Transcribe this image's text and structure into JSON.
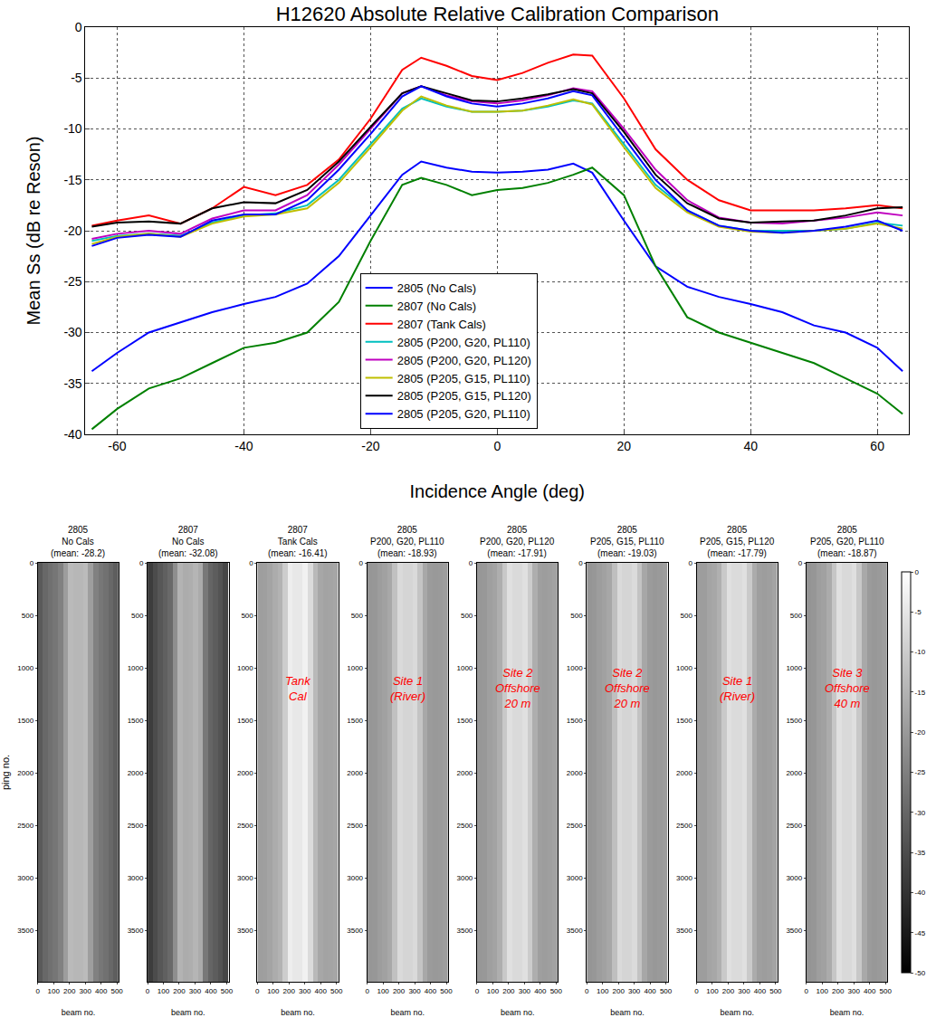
{
  "chart_data": [
    {
      "type": "line",
      "title": "H12620 Absolute Relative Calibration Comparison",
      "xlabel": "Incidence Angle (deg)",
      "ylabel": "Mean Ss (dB re Reson)",
      "xlim": [
        -65,
        65
      ],
      "ylim": [
        -40,
        0
      ],
      "xticks": [
        -60,
        -40,
        -20,
        0,
        20,
        40,
        60
      ],
      "yticks": [
        -40,
        -35,
        -30,
        -25,
        -20,
        -15,
        -10,
        -5,
        0
      ],
      "grid": true,
      "legend": "lower center",
      "x": [
        -64,
        -60,
        -55,
        -50,
        -45,
        -40,
        -35,
        -30,
        -25,
        -20,
        -15,
        -12,
        -8,
        -4,
        0,
        4,
        8,
        12,
        15,
        20,
        25,
        30,
        35,
        40,
        45,
        50,
        55,
        60,
        64
      ],
      "series": [
        {
          "name": "2805 (No Cals)",
          "color": "#0000ff",
          "values": [
            -33.8,
            -32,
            -30,
            -29,
            -28,
            -27.2,
            -26.5,
            -25.2,
            -22.5,
            -18.5,
            -14.5,
            -13.2,
            -13.8,
            -14.2,
            -14.3,
            -14.2,
            -14,
            -13.4,
            -14.3,
            -19,
            -23.5,
            -25.5,
            -26.5,
            -27.2,
            -28,
            -29.3,
            -30,
            -31.5,
            -33.8
          ]
        },
        {
          "name": "2807 (No Cals)",
          "color": "#008000",
          "values": [
            -39.5,
            -37.5,
            -35.5,
            -34.5,
            -33,
            -31.5,
            -31,
            -30,
            -27,
            -21,
            -15.5,
            -14.8,
            -15.5,
            -16.5,
            -16,
            -15.8,
            -15.3,
            -14.5,
            -13.8,
            -16.5,
            -23.5,
            -28.5,
            -30,
            -31,
            -32,
            -33,
            -34.5,
            -36,
            -38
          ]
        },
        {
          "name": "2807 (Tank Cals)",
          "color": "#ff0000",
          "values": [
            -19.5,
            -19,
            -18.5,
            -19.3,
            -17.8,
            -15.7,
            -16.5,
            -15.5,
            -13,
            -9,
            -4.2,
            -3,
            -3.8,
            -4.8,
            -5.2,
            -4.5,
            -3.5,
            -2.7,
            -2.8,
            -7,
            -12,
            -15,
            -17,
            -18,
            -18,
            -18,
            -17.8,
            -17.5,
            -17.8
          ]
        },
        {
          "name": "2805 (P200, G20, PL110)",
          "color": "#00bfbf",
          "values": [
            -21,
            -20.5,
            -20.3,
            -20.5,
            -19.2,
            -18.5,
            -18.3,
            -17.5,
            -15,
            -11.5,
            -8,
            -7,
            -7.8,
            -8.3,
            -8.3,
            -8.2,
            -7.8,
            -7.2,
            -7.5,
            -11.5,
            -15.5,
            -18,
            -19.5,
            -20,
            -20,
            -20,
            -19.8,
            -19.2,
            -19.5
          ]
        },
        {
          "name": "2805 (P200, G20, PL120)",
          "color": "#bf00bf",
          "values": [
            -20.8,
            -20.3,
            -20,
            -20.3,
            -18.8,
            -18,
            -18,
            -16.5,
            -13.5,
            -10,
            -6.5,
            -5.8,
            -6.7,
            -7.3,
            -7.5,
            -7.2,
            -6.7,
            -6,
            -6.3,
            -10,
            -14,
            -17,
            -18.7,
            -19.2,
            -19.3,
            -19,
            -18.7,
            -18.2,
            -18.5
          ]
        },
        {
          "name": "2805 (P205, G15, PL110)",
          "color": "#bfbf00",
          "values": [
            -21.3,
            -20.6,
            -20.3,
            -20.6,
            -19.3,
            -18.6,
            -18.4,
            -17.8,
            -15.3,
            -11.8,
            -8.2,
            -6.8,
            -7.7,
            -8.3,
            -8.3,
            -8.2,
            -7.7,
            -7.1,
            -7.6,
            -11.8,
            -15.8,
            -18.2,
            -19.6,
            -20.1,
            -20.2,
            -20,
            -19.8,
            -19.3,
            -19.8
          ]
        },
        {
          "name": "2805 (P205, G15, PL120)",
          "color": "#000000",
          "values": [
            -19.6,
            -19.2,
            -19.1,
            -19.3,
            -17.8,
            -17.2,
            -17.3,
            -16,
            -13.2,
            -9.8,
            -6.5,
            -5.8,
            -6.5,
            -7.2,
            -7.3,
            -7,
            -6.6,
            -6.1,
            -6.5,
            -10.3,
            -14.5,
            -17.3,
            -18.8,
            -19.2,
            -19.1,
            -19,
            -18.5,
            -17.8,
            -17.7
          ]
        },
        {
          "name": "2805 (P205, G20, PL110)",
          "color": "#0000ff",
          "values": [
            -21.5,
            -20.7,
            -20.4,
            -20.6,
            -19,
            -18.4,
            -18.4,
            -17,
            -14,
            -10.5,
            -6.8,
            -5.8,
            -6.8,
            -7.5,
            -7.8,
            -7.5,
            -7,
            -6.3,
            -6.7,
            -10.8,
            -15,
            -18,
            -19.5,
            -20,
            -20.2,
            -20,
            -19.6,
            -19,
            -20
          ]
        }
      ]
    },
    {
      "type": "heatmap",
      "title_lines": [
        "2805",
        "No Cals",
        "(mean: -28.2)"
      ],
      "xlabel": "beam no.",
      "ylabel": "ping no.",
      "xlim": [
        0,
        512
      ],
      "ylim": [
        3990,
        0
      ],
      "xticks": [
        0,
        100,
        200,
        300,
        400,
        500
      ],
      "yticks": [
        0,
        500,
        1000,
        1500,
        2000,
        2500,
        3000,
        3500
      ],
      "x_edges": [
        0,
        32,
        64,
        96,
        128,
        160,
        192,
        224,
        256,
        288,
        320,
        352,
        384,
        416,
        448,
        480,
        512
      ],
      "y_edges": [
        0,
        3990
      ],
      "z": [
        [
          -32.4,
          -29.6,
          -28,
          -26.8,
          -24.7,
          -19.3,
          -13.6,
          -14.1,
          -14.2,
          -13.4,
          -19,
          -24.7,
          -26.6,
          -27.8,
          -29.6,
          -31.5
        ]
      ]
    },
    {
      "type": "heatmap",
      "title_lines": [
        "2807",
        "No Cals",
        "(mean: -32.08)"
      ],
      "xlabel": "beam no.",
      "xlim": [
        0,
        512
      ],
      "ylim": [
        3990,
        0
      ],
      "xticks": [
        0,
        100,
        200,
        300,
        400,
        500
      ],
      "yticks": [
        0,
        500,
        1000,
        1500,
        2000,
        2500,
        3000,
        3500
      ],
      "x_edges": [
        0,
        32,
        64,
        96,
        128,
        160,
        192,
        224,
        256,
        288,
        320,
        352,
        384,
        416,
        448,
        480,
        512
      ],
      "y_edges": [
        0,
        3990
      ],
      "z": [
        [
          -38,
          -35.1,
          -33,
          -31.2,
          -29.4,
          -22.2,
          -15,
          -16.2,
          -15.8,
          -14.5,
          -16.5,
          -26.5,
          -30.2,
          -31.8,
          -33.6,
          -36
        ]
      ]
    },
    {
      "type": "heatmap",
      "title_lines": [
        "2807",
        "Tank Cals",
        "(mean: -16.41)"
      ],
      "annotation_lines": [
        "Tank",
        "Cal"
      ],
      "xlabel": "beam no.",
      "xlim": [
        0,
        512
      ],
      "ylim": [
        3990,
        0
      ],
      "xticks": [
        0,
        100,
        200,
        300,
        400,
        500
      ],
      "yticks": [
        0,
        500,
        1000,
        1500,
        2000,
        2500,
        3000,
        3500
      ],
      "x_edges": [
        0,
        32,
        64,
        96,
        128,
        160,
        192,
        224,
        256,
        288,
        320,
        352,
        384,
        416,
        448,
        480,
        512
      ],
      "y_edges": [
        0,
        3990
      ],
      "z": [
        [
          -19.1,
          -18.8,
          -17.8,
          -16.2,
          -15,
          -9.8,
          -3.4,
          -4.6,
          -4.5,
          -2.7,
          -7,
          -13.8,
          -17.2,
          -18,
          -17.9,
          -17.5
        ]
      ]
    },
    {
      "type": "heatmap",
      "title_lines": [
        "2805",
        "P200, G20, PL110",
        "(mean: -18.93)"
      ],
      "annotation_lines": [
        "Site 1",
        "(River)"
      ],
      "xlabel": "beam no.",
      "xlim": [
        0,
        512
      ],
      "ylim": [
        3990,
        0
      ],
      "xticks": [
        0,
        100,
        200,
        300,
        400,
        500
      ],
      "yticks": [
        0,
        500,
        1000,
        1500,
        2000,
        2500,
        3000,
        3500
      ],
      "x_edges": [
        0,
        32,
        64,
        96,
        128,
        160,
        192,
        224,
        256,
        288,
        320,
        352,
        384,
        416,
        448,
        480,
        512
      ],
      "y_edges": [
        0,
        3990
      ],
      "z": [
        [
          -20.6,
          -20.4,
          -19.2,
          -18.4,
          -17,
          -12.2,
          -7.3,
          -8.2,
          -8.2,
          -7.2,
          -11.5,
          -17,
          -19.6,
          -20,
          -19.9,
          -19.2
        ]
      ]
    },
    {
      "type": "heatmap",
      "title_lines": [
        "2805",
        "P200, G20, PL120",
        "(mean: -17.91)"
      ],
      "annotation_lines": [
        "Site 2",
        "Offshore",
        "20 m"
      ],
      "xlabel": "beam no.",
      "xlim": [
        0,
        512
      ],
      "ylim": [
        3990,
        0
      ],
      "xticks": [
        0,
        100,
        200,
        300,
        400,
        500
      ],
      "yticks": [
        0,
        500,
        1000,
        1500,
        2000,
        2500,
        3000,
        3500
      ],
      "x_edges": [
        0,
        32,
        64,
        96,
        128,
        160,
        192,
        224,
        256,
        288,
        320,
        352,
        384,
        416,
        448,
        480,
        512
      ],
      "y_edges": [
        0,
        3990
      ],
      "z": [
        [
          -20.4,
          -20.2,
          -18.8,
          -18,
          -15.9,
          -10.7,
          -6,
          -7.2,
          -7.2,
          -6,
          -10,
          -15.8,
          -18.8,
          -19.3,
          -18.9,
          -18.2
        ]
      ]
    },
    {
      "type": "heatmap",
      "title_lines": [
        "2805",
        "P205, G15, PL110",
        "(mean: -19.03)"
      ],
      "annotation_lines": [
        "Site 2",
        "Offshore",
        "20 m"
      ],
      "xlabel": "beam no.",
      "xlim": [
        0,
        512
      ],
      "ylim": [
        3990,
        0
      ],
      "xticks": [
        0,
        100,
        200,
        300,
        400,
        500
      ],
      "yticks": [
        0,
        500,
        1000,
        1500,
        2000,
        2500,
        3000,
        3500
      ],
      "x_edges": [
        0,
        32,
        64,
        96,
        128,
        160,
        192,
        224,
        256,
        288,
        320,
        352,
        384,
        416,
        448,
        480,
        512
      ],
      "y_edges": [
        0,
        3990
      ],
      "z": [
        [
          -20.8,
          -20.4,
          -19.3,
          -18.5,
          -17.3,
          -12.5,
          -7.3,
          -8.2,
          -8.2,
          -7.1,
          -11.8,
          -17.2,
          -19.7,
          -20.1,
          -19.9,
          -19.3
        ]
      ]
    },
    {
      "type": "heatmap",
      "title_lines": [
        "2805",
        "P205, G15, PL120",
        "(mean: -17.79)"
      ],
      "annotation_lines": [
        "Site 1",
        "(River)"
      ],
      "xlabel": "beam no.",
      "xlim": [
        0,
        512
      ],
      "ylim": [
        3990,
        0
      ],
      "xticks": [
        0,
        100,
        200,
        300,
        400,
        500
      ],
      "yticks": [
        0,
        500,
        1000,
        1500,
        2000,
        2500,
        3000,
        3500
      ],
      "x_edges": [
        0,
        32,
        64,
        96,
        128,
        160,
        192,
        224,
        256,
        288,
        320,
        352,
        384,
        416,
        448,
        480,
        512
      ],
      "y_edges": [
        0,
        3990
      ],
      "z": [
        [
          -19.3,
          -19.2,
          -17.8,
          -17.3,
          -15.4,
          -10.5,
          -6,
          -7,
          -7,
          -6.1,
          -10.3,
          -16.2,
          -18.9,
          -19.2,
          -18.8,
          -17.8
        ]
      ]
    },
    {
      "type": "heatmap",
      "title_lines": [
        "2805",
        "P205, G20, PL110",
        "(mean: -18.87)"
      ],
      "annotation_lines": [
        "Site 3",
        "Offshore",
        "40 m"
      ],
      "xlabel": "beam no.",
      "xlim": [
        0,
        512
      ],
      "ylim": [
        3990,
        0
      ],
      "xticks": [
        0,
        100,
        200,
        300,
        400,
        500
      ],
      "yticks": [
        0,
        500,
        1000,
        1500,
        2000,
        2500,
        3000,
        3500
      ],
      "x_edges": [
        0,
        32,
        64,
        96,
        128,
        160,
        192,
        224,
        256,
        288,
        320,
        352,
        384,
        416,
        448,
        480,
        512
      ],
      "y_edges": [
        0,
        3990
      ],
      "z": [
        [
          -20.9,
          -20.5,
          -19,
          -18.4,
          -16.4,
          -11.2,
          -6.1,
          -7.4,
          -7.5,
          -6.3,
          -10.8,
          -16.8,
          -19.6,
          -20.2,
          -19.9,
          -19
        ]
      ],
      "colorbar": {
        "range": [
          -50,
          0
        ],
        "ticks": [
          0,
          -5,
          -10,
          -15,
          -20,
          -25,
          -30,
          -35,
          -40,
          -45,
          -50
        ]
      }
    }
  ]
}
